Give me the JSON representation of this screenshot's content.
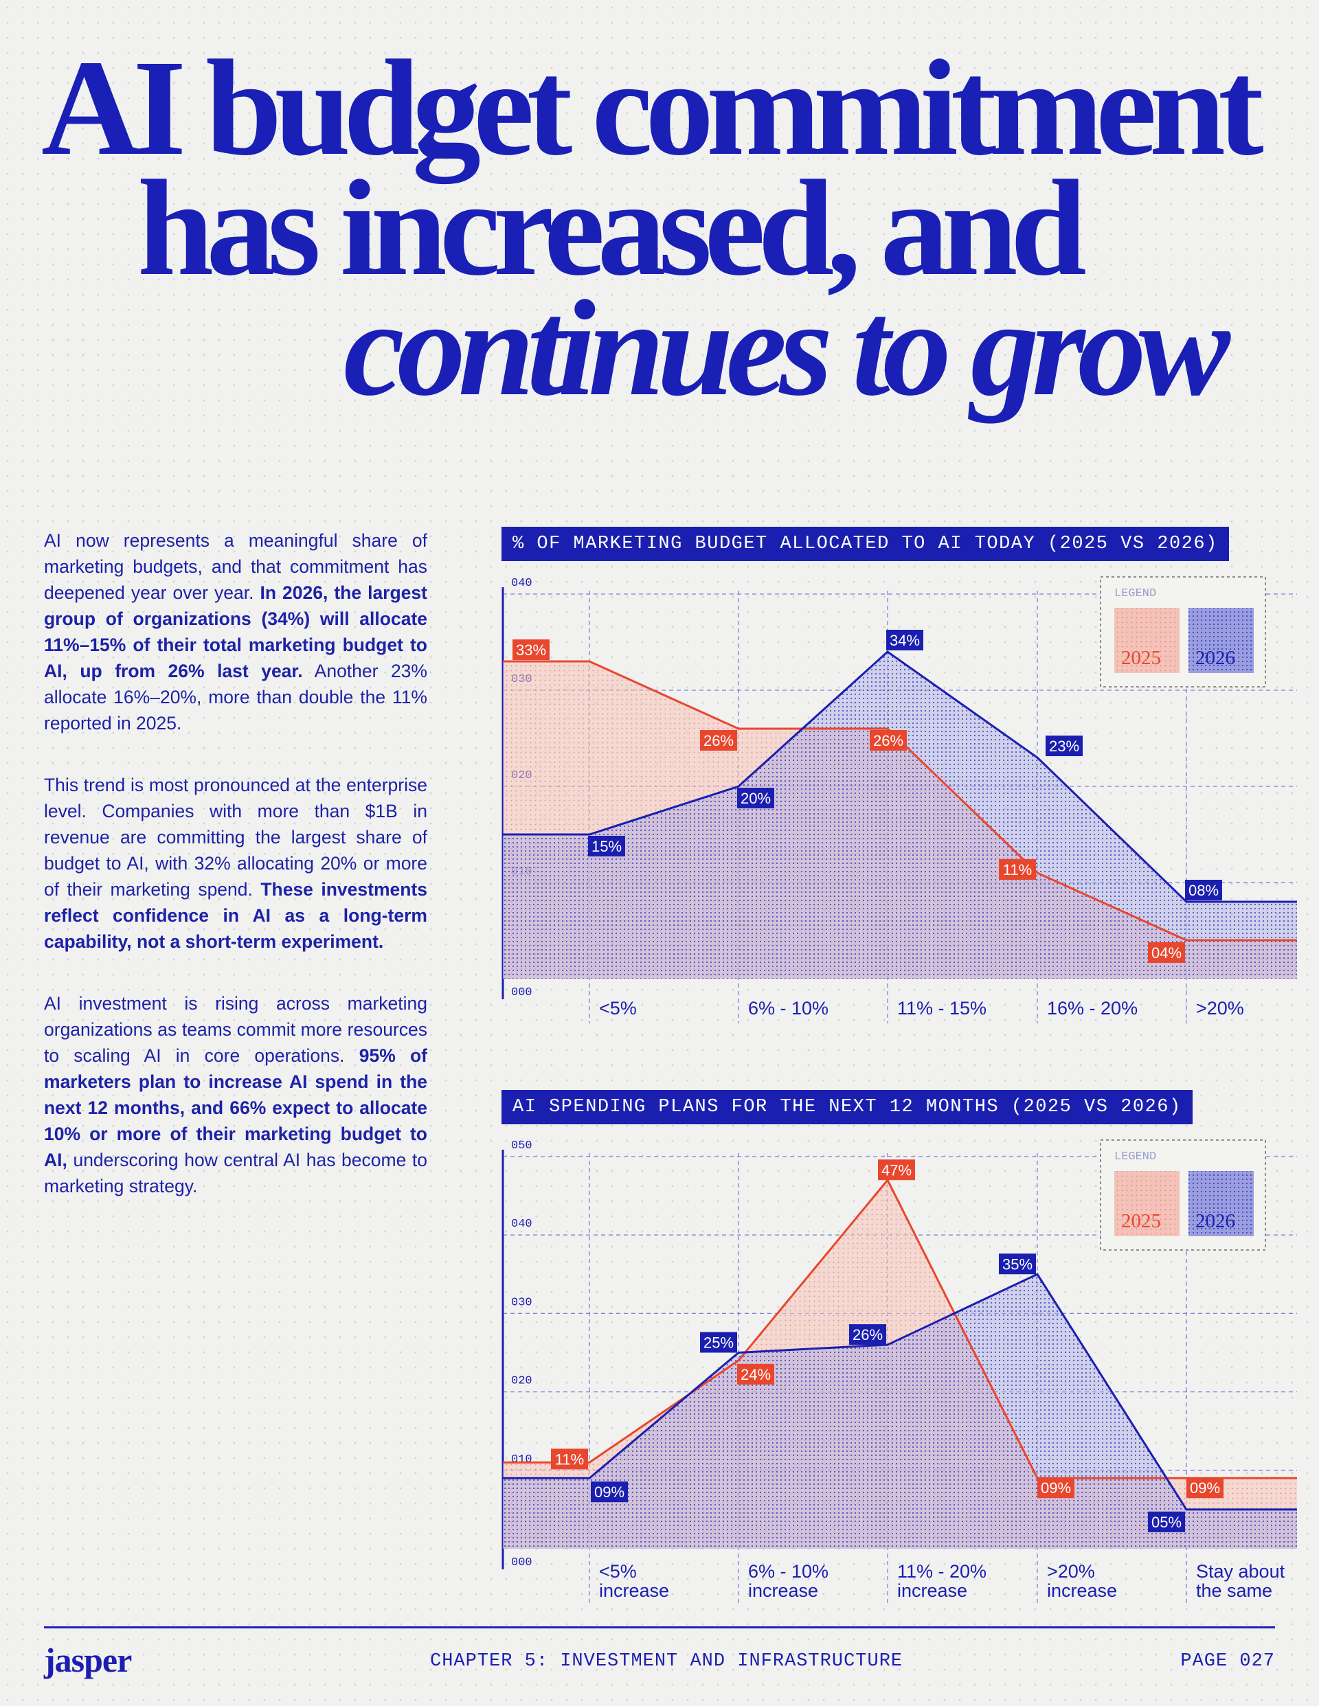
{
  "title": {
    "line1": "AI budget commitment",
    "line2": "has increased, and",
    "line3": "continues to grow"
  },
  "body": {
    "p1_a": "AI now represents a meaningful share of marketing budgets, and that commitment has deepened year over year. ",
    "p1_b": "In 2026, the largest group of organizations (34%) will allocate 11%–15% of their total marketing budget to AI, up from 26% last year.",
    "p1_c": " Another 23% allocate 16%–20%, more than double the 11% reported in 2025.",
    "p2_a": "This trend is most pronounced at the enterprise level. Companies with more than $1B in revenue are committing the largest share of budget to AI, with 32% allocating 20% or more of their marketing spend. ",
    "p2_b": "These investments reflect confidence in AI as a long-term capability, not a short-term experiment.",
    "p3_a": "AI investment is rising across marketing organizations as teams commit more resources to scaling AI in core operations. ",
    "p3_b": "95% of marketers plan to increase AI spend in the next 12 months, and 66% expect to allocate 10% or more of their marketing budget to AI,",
    "p3_c": " underscoring how central AI has become to marketing strategy."
  },
  "chart_data": [
    {
      "type": "area",
      "title": "% OF MARKETING BUDGET ALLOCATED TO AI TODAY (2025 VS 2026)",
      "categories": [
        [
          "<5%"
        ],
        [
          "6% - 10%"
        ],
        [
          "11% - 15%"
        ],
        [
          "16% - 20%"
        ],
        [
          ">20%"
        ]
      ],
      "series": [
        {
          "name": "2025",
          "values": [
            33,
            26,
            26,
            11,
            4
          ],
          "labels": [
            "33%",
            "26%",
            "26%",
            "11%",
            "04%"
          ],
          "color": "#e8472e"
        },
        {
          "name": "2026",
          "values": [
            15,
            20,
            34,
            23,
            8
          ],
          "labels": [
            "15%",
            "20%",
            "34%",
            "23%",
            "08%"
          ],
          "color": "#1b1fb0"
        }
      ],
      "y_ticks": [
        "000",
        "010",
        "020",
        "030",
        "040"
      ],
      "ylim": [
        0,
        40
      ],
      "legend": {
        "title": "LEGEND",
        "entries": [
          "2025",
          "2026"
        ],
        "placement": "top-right"
      }
    },
    {
      "type": "area",
      "title": "AI SPENDING PLANS FOR THE NEXT 12 MONTHS (2025 VS 2026)",
      "categories": [
        [
          "<5%",
          "increase"
        ],
        [
          "6% - 10%",
          "increase"
        ],
        [
          "11% - 20%",
          "increase"
        ],
        [
          ">20%",
          "increase"
        ],
        [
          "Stay about",
          "the same"
        ]
      ],
      "series": [
        {
          "name": "2025",
          "values": [
            11,
            24,
            47,
            9,
            9
          ],
          "labels": [
            "11%",
            "24%",
            "47%",
            "09%",
            "09%"
          ],
          "color": "#e8472e"
        },
        {
          "name": "2026",
          "values": [
            9,
            25,
            26,
            35,
            5
          ],
          "labels": [
            "09%",
            "25%",
            "26%",
            "35%",
            "05%"
          ],
          "color": "#1b1fb0"
        }
      ],
      "y_ticks": [
        "000",
        "010",
        "020",
        "030",
        "040",
        "050"
      ],
      "ylim": [
        0,
        50
      ],
      "legend": {
        "title": "LEGEND",
        "entries": [
          "2025",
          "2026"
        ],
        "placement": "top-right"
      }
    }
  ],
  "footer": {
    "logo": "jasper",
    "chapter": "CHAPTER 5: INVESTMENT AND INFRASTRUCTURE",
    "page": "PAGE 027"
  },
  "colors": {
    "blue": "#1b1fb0",
    "red": "#e8472e",
    "background": "#f1f1ef"
  }
}
